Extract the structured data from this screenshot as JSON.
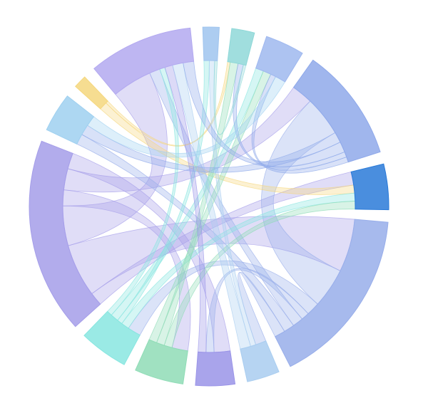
{
  "chart_data": {
    "type": "chord",
    "nodes": [
      {
        "color": "#9fc4ee"
      },
      {
        "color": "#8fd8d8"
      },
      {
        "color": "#9fb8ef"
      },
      {
        "color": "#8fa9ea"
      },
      {
        "color": "#2a7ad8"
      },
      {
        "color": "#98aeea"
      },
      {
        "color": "#a9cdf0"
      },
      {
        "color": "#9a94e8"
      },
      {
        "color": "#8fdcb6"
      },
      {
        "color": "#88e6e0"
      },
      {
        "color": "#a59ee9"
      },
      {
        "color": "#9fd0f0"
      },
      {
        "color": "#f5d77e"
      },
      {
        "color": "#b3a9f0"
      }
    ],
    "links": [
      {
        "source": 10,
        "target": 4,
        "value": 5
      },
      {
        "source": 10,
        "target": 5,
        "value": 20
      },
      {
        "source": 10,
        "target": 13,
        "value": 15
      },
      {
        "source": 10,
        "target": 8,
        "value": 6
      },
      {
        "source": 10,
        "target": 3,
        "value": 8
      },
      {
        "source": 10,
        "target": 7,
        "value": 6
      },
      {
        "source": 5,
        "target": 3,
        "value": 15
      },
      {
        "source": 5,
        "target": 9,
        "value": 5
      },
      {
        "source": 5,
        "target": 7,
        "value": 3
      },
      {
        "source": 5,
        "target": 13,
        "value": 4
      },
      {
        "source": 5,
        "target": 11,
        "value": 4
      },
      {
        "source": 5,
        "target": 6,
        "value": 4
      },
      {
        "source": 12,
        "target": 4,
        "value": 3
      },
      {
        "source": 9,
        "target": 4,
        "value": 3
      },
      {
        "source": 8,
        "target": 4,
        "value": 3
      },
      {
        "source": 12,
        "target": 1,
        "value": 1
      },
      {
        "source": 9,
        "target": 0,
        "value": 2
      },
      {
        "source": 9,
        "target": 2,
        "value": 3
      },
      {
        "source": 9,
        "target": 13,
        "value": 2
      },
      {
        "source": 8,
        "target": 1,
        "value": 3
      },
      {
        "source": 8,
        "target": 2,
        "value": 3
      },
      {
        "source": 7,
        "target": 13,
        "value": 3
      },
      {
        "source": 6,
        "target": 0,
        "value": 2
      },
      {
        "source": 6,
        "target": 13,
        "value": 4
      },
      {
        "source": 3,
        "target": 11,
        "value": 4
      },
      {
        "source": 3,
        "target": 13,
        "value": 4
      },
      {
        "source": 3,
        "target": 1,
        "value": 2
      },
      {
        "source": 3,
        "target": 2,
        "value": 2
      },
      {
        "source": 11,
        "target": 2,
        "value": 4
      },
      {
        "source": 1,
        "target": 0,
        "value": 1
      }
    ]
  }
}
